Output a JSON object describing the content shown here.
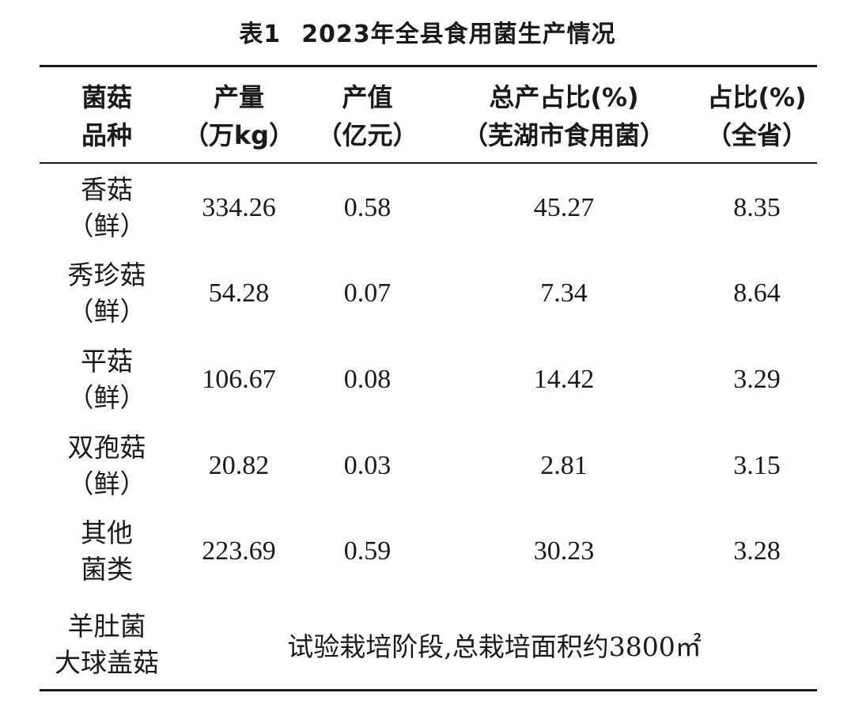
{
  "table": {
    "number": "表1",
    "title": "2023年全县食用菌生产情况",
    "headers": [
      {
        "line1": "菌菇",
        "line2": "品种"
      },
      {
        "line1": "产量",
        "line2": "（万kg）"
      },
      {
        "line1": "产值",
        "line2": "（亿元）"
      },
      {
        "line1": "总产占比(%)",
        "line2": "（芜湖市食用菌）"
      },
      {
        "line1": "占比(%)",
        "line2": "（全省）"
      }
    ],
    "rows": [
      {
        "name1": "香菇",
        "name2": "（鲜）",
        "output": "334.26",
        "value": "0.58",
        "share_wuhu": "45.27",
        "share_province": "8.35"
      },
      {
        "name1": "秀珍菇",
        "name2": "（鲜）",
        "output": "54.28",
        "value": "0.07",
        "share_wuhu": "7.34",
        "share_province": "8.64"
      },
      {
        "name1": "平菇",
        "name2": "（鲜）",
        "output": "106.67",
        "value": "0.08",
        "share_wuhu": "14.42",
        "share_province": "3.29"
      },
      {
        "name1": "双孢菇",
        "name2": "（鲜）",
        "output": "20.82",
        "value": "0.03",
        "share_wuhu": "2.81",
        "share_province": "3.15"
      },
      {
        "name1": "其他",
        "name2": "菌类",
        "output": "223.69",
        "value": "0.59",
        "share_wuhu": "30.23",
        "share_province": "3.28"
      }
    ],
    "last_row": {
      "name1": "羊肚菌",
      "name2": "大球盖菇",
      "note": "试验栽培阶段,总栽培面积约3800㎡"
    }
  }
}
